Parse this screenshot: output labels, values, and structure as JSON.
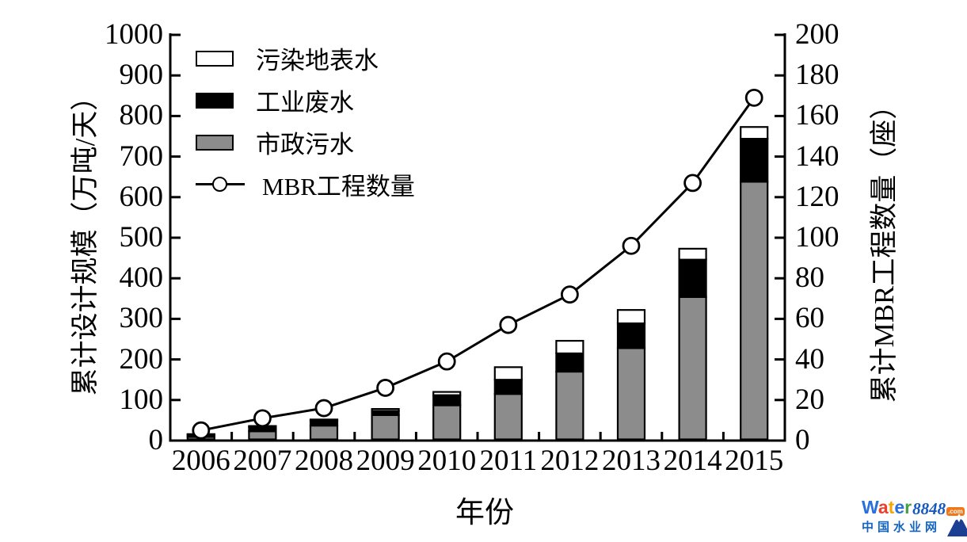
{
  "chart_data": {
    "type": "bar",
    "subtype": "stacked-bars-with-line-overlay",
    "xlabel": "年份",
    "categories": [
      "2006",
      "2007",
      "2008",
      "2009",
      "2010",
      "2011",
      "2012",
      "2013",
      "2014",
      "2015"
    ],
    "left_axis": {
      "title": "累计设计规模（万吨/天）",
      "min": 0,
      "max": 1000,
      "step": 100,
      "ticks": [
        0,
        100,
        200,
        300,
        400,
        500,
        600,
        700,
        800,
        900,
        1000
      ]
    },
    "right_axis": {
      "title": "累计MBR工程数量（座）",
      "min": 0,
      "max": 200,
      "step": 20,
      "ticks": [
        0,
        20,
        40,
        60,
        80,
        100,
        120,
        140,
        160,
        180,
        200
      ]
    },
    "bar_series": [
      {
        "name": "市政污水",
        "color": "#8c8c8c",
        "values": [
          6,
          20,
          34,
          60,
          84,
          112,
          167,
          225,
          351,
          635
        ]
      },
      {
        "name": "工业废水",
        "color": "#000000",
        "values": [
          6,
          11,
          12,
          10,
          25,
          35,
          45,
          61,
          92,
          106
        ]
      },
      {
        "name": "污染地表水",
        "color": "#ffffff",
        "values": [
          1,
          2,
          3,
          5,
          8,
          31,
          31,
          33,
          27,
          29
        ]
      }
    ],
    "bar_totals": [
      13,
      33,
      49,
      75,
      117,
      178,
      243,
      319,
      470,
      770
    ],
    "line_series": {
      "name": "MBR工程数量",
      "axis": "right",
      "values": [
        5,
        11,
        16,
        26,
        39,
        57,
        72,
        96,
        127,
        169
      ]
    },
    "legend": [
      {
        "label": "污染地表水",
        "swatch": "white"
      },
      {
        "label": "工业废水",
        "swatch": "black"
      },
      {
        "label": "市政污水",
        "swatch": "gray"
      },
      {
        "label": "MBR工程数量",
        "swatch": "line-circle"
      }
    ],
    "legend_position": "top-left",
    "grid": false
  },
  "watermark": {
    "brand_letters": [
      {
        "ch": "W",
        "color": "#2a6fdb"
      },
      {
        "ch": "a",
        "color": "#e8422d"
      },
      {
        "ch": "t",
        "color": "#f5a70a"
      },
      {
        "ch": "e",
        "color": "#2a6fdb"
      },
      {
        "ch": "r",
        "color": "#43a047"
      }
    ],
    "brand_number": "8848",
    "brand_tld": ".com",
    "subtitle": "中国水业网"
  },
  "colors": {
    "axis": "#000000",
    "background": "#ffffff",
    "bar_gray": "#8c8c8c",
    "brand_number_blue": "#1558c0",
    "tld_bg": "#f07818",
    "subtitle_blue": "#1565c0",
    "mountain_navy": "#1c3f94"
  }
}
